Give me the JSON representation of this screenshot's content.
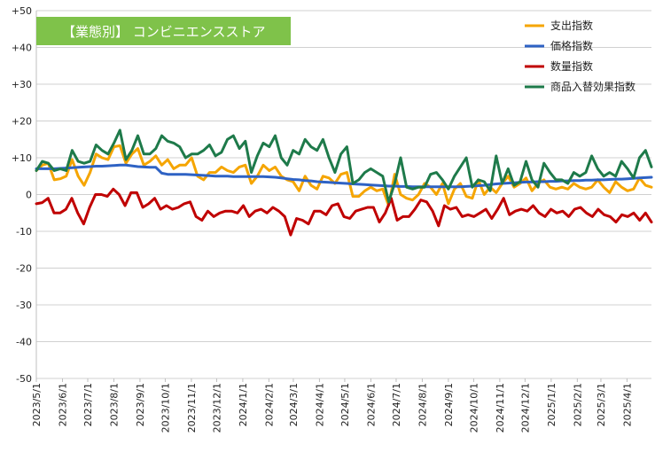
{
  "chart_data": {
    "type": "line",
    "title_badge": "【業態別】 コンビニエンスストア",
    "ylim": [
      -50,
      50
    ],
    "y_ticks": [
      "+50",
      "+40",
      "+30",
      "+20",
      "+10",
      "0",
      "-10",
      "-20",
      "-30",
      "-40",
      "-50"
    ],
    "grid": true,
    "legend_position": "top-right",
    "x_start": "2023/5/1",
    "x_end": "2025/4/30",
    "x_ticks": [
      "2023/5/1",
      "2023/6/1",
      "2023/7/1",
      "2023/8/1",
      "2023/9/1",
      "2023/10/1",
      "2023/11/1",
      "2023/12/1",
      "2024/1/1",
      "2024/2/1",
      "2024/3/1",
      "2024/4/1",
      "2024/5/1",
      "2024/6/1",
      "2024/7/1",
      "2024/8/1",
      "2024/9/1",
      "2024/10/1",
      "2024/11/1",
      "2024/12/1",
      "2025/1/1",
      "2025/2/1",
      "2025/3/1",
      "2025/4/1"
    ],
    "series": [
      {
        "name": "支出指数",
        "color": "#f5a500",
        "values": [
          6.5,
          8,
          8.5,
          4,
          4.3,
          5,
          9.5,
          5,
          2.5,
          6,
          11,
          10,
          9.5,
          13,
          13.3,
          8.5,
          11,
          12.5,
          8,
          9,
          10.5,
          8,
          9.5,
          7,
          8,
          8,
          10,
          5,
          4,
          6,
          6,
          7.5,
          6.5,
          6,
          7.5,
          8,
          3,
          5,
          8,
          6.5,
          7.5,
          5,
          4,
          3.5,
          1,
          5,
          2.5,
          1.5,
          5,
          4.5,
          3,
          5.5,
          6,
          -0.5,
          -0.5,
          1,
          2,
          1,
          1.5,
          -3,
          5.5,
          0,
          -1,
          -1.5,
          0,
          3,
          2,
          0,
          3,
          -2.5,
          1.5,
          3,
          -0.5,
          -1,
          4,
          0,
          2,
          0.5,
          3,
          5,
          2,
          3,
          4.5,
          1,
          3,
          4,
          2,
          1.5,
          2,
          1.5,
          3,
          2,
          1.5,
          2,
          4,
          2,
          0.5,
          3.5,
          2,
          1,
          1.5,
          4.5,
          2.5,
          2
        ]
      },
      {
        "name": "価格指数",
        "color": "#2e62c4",
        "values": [
          7,
          7,
          7,
          7,
          7.1,
          7.2,
          7.3,
          7.4,
          7.5,
          7.6,
          7.7,
          7.7,
          7.8,
          7.9,
          8,
          8,
          7.8,
          7.6,
          7.5,
          7.4,
          7.4,
          5.8,
          5.5,
          5.5,
          5.5,
          5.5,
          5.4,
          5.3,
          5.2,
          5.1,
          5.0,
          5.0,
          5.0,
          4.9,
          4.9,
          4.9,
          4.9,
          4.9,
          4.9,
          4.8,
          4.7,
          4.5,
          4.3,
          4.1,
          4.0,
          3.8,
          3.7,
          3.5,
          3.4,
          3.3,
          3.2,
          3.1,
          3.0,
          2.9,
          2.8,
          2.7,
          2.6,
          2.5,
          2.4,
          2.3,
          2.3,
          2.2,
          2.2,
          2.1,
          2.1,
          2.1,
          2.1,
          2.1,
          2.1,
          2.1,
          2.1,
          2.1,
          2.2,
          2.3,
          2.4,
          2.5,
          2.7,
          2.9,
          3.0,
          3.1,
          3.2,
          3.3,
          3.4,
          3.4,
          3.5,
          3.5,
          3.6,
          3.6,
          3.7,
          3.7,
          3.8,
          3.8,
          3.9,
          3.9,
          4.0,
          4.0,
          4.1,
          4.2,
          4.2,
          4.3,
          4.4,
          4.5,
          4.6,
          4.7
        ]
      },
      {
        "name": "数量指数",
        "color": "#c00000",
        "values": [
          -2.5,
          -2.2,
          -1,
          -5,
          -5,
          -4,
          -1,
          -5,
          -8,
          -3.5,
          0,
          0,
          -0.5,
          1.5,
          0,
          -3,
          0.5,
          0.5,
          -3.5,
          -2.5,
          -1,
          -4,
          -3,
          -4,
          -3.5,
          -2.5,
          -2,
          -6,
          -7,
          -4.5,
          -6,
          -5,
          -4.5,
          -4.5,
          -5,
          -3,
          -6,
          -4.5,
          -4,
          -5,
          -3.5,
          -4.5,
          -6,
          -11,
          -6.5,
          -7,
          -8,
          -4.5,
          -4.5,
          -5.5,
          -3,
          -2.5,
          -6,
          -6.5,
          -4.5,
          -4,
          -3.5,
          -3.5,
          -7.5,
          -5,
          -1,
          -7,
          -6,
          -6,
          -4,
          -1.5,
          -2,
          -4.5,
          -8.5,
          -3,
          -4,
          -3.5,
          -6,
          -5.5,
          -6,
          -5,
          -4,
          -6.5,
          -4,
          -1,
          -5.5,
          -4.5,
          -4,
          -4.5,
          -3,
          -5,
          -6,
          -4,
          -5,
          -4.5,
          -6,
          -4,
          -3.5,
          -5,
          -6,
          -4,
          -5.5,
          -6,
          -7.5,
          -5.5,
          -6,
          -5,
          -7,
          -5,
          -7.5
        ]
      },
      {
        "name": "商品入替効果指数",
        "color": "#1e7a4a",
        "values": [
          6.5,
          9,
          8.5,
          6.5,
          7,
          6.5,
          12,
          9,
          8.5,
          9,
          13.5,
          12,
          11,
          14,
          17.5,
          9.5,
          12,
          16,
          11,
          11,
          12.5,
          16,
          14.5,
          14,
          13,
          10,
          11,
          11,
          12,
          13.5,
          10.5,
          11.5,
          15,
          16,
          12.5,
          14.5,
          6,
          10.5,
          14,
          13,
          16,
          10,
          8,
          12,
          11,
          15,
          13,
          12,
          15,
          10,
          6,
          11,
          13,
          3,
          4,
          6,
          7,
          6,
          5,
          -2,
          3,
          10,
          2,
          1.5,
          2,
          2,
          5.5,
          6,
          4,
          1.5,
          5,
          7.5,
          10,
          2,
          4,
          3.5,
          1,
          10.5,
          3,
          7,
          2.5,
          3.5,
          9,
          4,
          2,
          8.5,
          6,
          4,
          4,
          3,
          6,
          5,
          6,
          10.5,
          7,
          5,
          6,
          5,
          9,
          7,
          4.5,
          10,
          12,
          7.5
        ]
      }
    ]
  }
}
